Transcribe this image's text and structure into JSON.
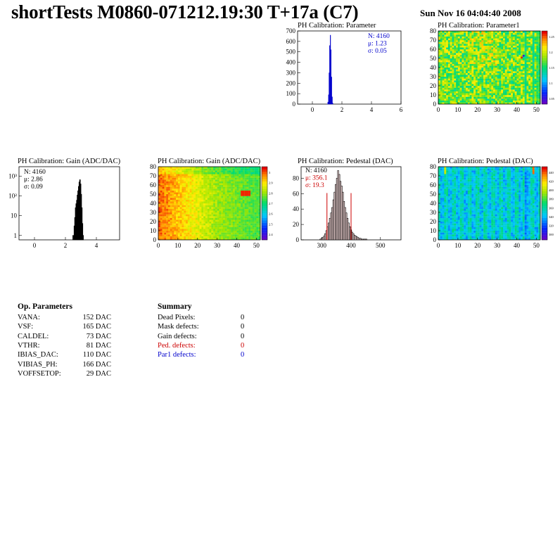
{
  "header": {
    "title": "shortTests M0860-071212.19:30 T+17a (C7)",
    "date": "Sun Nov 16 04:04:40 2008"
  },
  "colors": {
    "blue": "#0000cc",
    "red": "#cc0000",
    "black": "#000000"
  },
  "chart_data": [
    {
      "id": "param-hist",
      "type": "bar",
      "title": "PH Calibration: Parameter",
      "xlim": [
        -1,
        6
      ],
      "ylim": [
        0,
        700
      ],
      "xticks": [
        0,
        2,
        4,
        6
      ],
      "yticks": [
        0,
        100,
        200,
        300,
        400,
        500,
        600,
        700
      ],
      "stats": {
        "N": "4160",
        "mean": "1.23",
        "sigma": "0.05"
      },
      "bins": [
        [
          1.02,
          2
        ],
        [
          1.06,
          20
        ],
        [
          1.1,
          90
        ],
        [
          1.14,
          300
        ],
        [
          1.18,
          560
        ],
        [
          1.22,
          660
        ],
        [
          1.26,
          520
        ],
        [
          1.3,
          260
        ],
        [
          1.34,
          70
        ],
        [
          1.38,
          10
        ]
      ]
    },
    {
      "id": "param-map",
      "type": "heatmap",
      "title": "PH Calibration: Parameter1",
      "xlim": [
        0,
        52
      ],
      "ylim": [
        0,
        80
      ],
      "xticks": [
        0,
        10,
        20,
        30,
        40,
        50
      ],
      "yticks": [
        0,
        10,
        20,
        30,
        40,
        50,
        60,
        70,
        80
      ],
      "zticks": [
        "1.05",
        "1.1",
        "1.15",
        "1.2",
        "1.25"
      ]
    },
    {
      "id": "gain-hist",
      "type": "bar",
      "title": "PH Calibration: Gain (ADC/DAC)",
      "xlim": [
        -1,
        5.5
      ],
      "ylim": [
        0.6,
        3000
      ],
      "log_y": true,
      "xticks": [
        0,
        2,
        4
      ],
      "yticks": [
        {
          "v": 1,
          "l": "1"
        },
        {
          "v": 10,
          "l": "10"
        },
        {
          "v": 100,
          "l": "10²"
        },
        {
          "v": 1000,
          "l": "10³"
        }
      ],
      "stats": {
        "N": "4160",
        "mean": "2.86",
        "sigma": "0.09"
      },
      "bins": [
        [
          2.5,
          1
        ],
        [
          2.58,
          3
        ],
        [
          2.62,
          8
        ],
        [
          2.66,
          25
        ],
        [
          2.7,
          40
        ],
        [
          2.74,
          60
        ],
        [
          2.78,
          110
        ],
        [
          2.82,
          180
        ],
        [
          2.86,
          300
        ],
        [
          2.9,
          500
        ],
        [
          2.94,
          650
        ],
        [
          2.98,
          400
        ],
        [
          3.02,
          120
        ],
        [
          3.06,
          25
        ],
        [
          3.1,
          4
        ],
        [
          3.14,
          1
        ]
      ]
    },
    {
      "id": "gain-map",
      "type": "heatmap",
      "title": "PH Calibration: Gain (ADC/DAC)",
      "xlim": [
        0,
        52
      ],
      "ylim": [
        0,
        80
      ],
      "xticks": [
        0,
        10,
        20,
        30,
        40,
        50
      ],
      "yticks": [
        0,
        10,
        20,
        30,
        40,
        50,
        60,
        70,
        80
      ],
      "zticks": [
        "2.4",
        "2.5",
        "2.6",
        "2.7",
        "2.8",
        "2.9",
        "3"
      ]
    },
    {
      "id": "ped-hist",
      "type": "bar",
      "title": "PH Calibration: Pedestal (DAC)",
      "xlim": [
        230,
        570
      ],
      "ylim": [
        0,
        95
      ],
      "xticks": [
        300,
        400,
        500
      ],
      "yticks": [
        0,
        20,
        40,
        60,
        80
      ],
      "stats": {
        "N": "4160",
        "mean": "356.1",
        "sigma": "19.3"
      },
      "cut_lines": [
        318,
        400
      ],
      "bins": [
        [
          296,
          1
        ],
        [
          300,
          2
        ],
        [
          304,
          3
        ],
        [
          308,
          5
        ],
        [
          312,
          8
        ],
        [
          316,
          12
        ],
        [
          320,
          17
        ],
        [
          324,
          22
        ],
        [
          328,
          28
        ],
        [
          332,
          35
        ],
        [
          336,
          42
        ],
        [
          340,
          52
        ],
        [
          344,
          62
        ],
        [
          348,
          72
        ],
        [
          352,
          80
        ],
        [
          356,
          90
        ],
        [
          360,
          85
        ],
        [
          364,
          76
        ],
        [
          368,
          70
        ],
        [
          372,
          62
        ],
        [
          376,
          50
        ],
        [
          380,
          42
        ],
        [
          384,
          35
        ],
        [
          388,
          28
        ],
        [
          392,
          22
        ],
        [
          396,
          17
        ],
        [
          400,
          13
        ],
        [
          404,
          10
        ],
        [
          408,
          8
        ],
        [
          412,
          6
        ],
        [
          416,
          5
        ],
        [
          420,
          4
        ],
        [
          424,
          3
        ],
        [
          428,
          2
        ],
        [
          432,
          2
        ],
        [
          436,
          1
        ],
        [
          440,
          1
        ],
        [
          444,
          1
        ],
        [
          448,
          1
        ],
        [
          452,
          1
        ]
      ]
    },
    {
      "id": "ped-map",
      "type": "heatmap",
      "title": "PH Calibration: Pedestal (DAC)",
      "xlim": [
        0,
        52
      ],
      "ylim": [
        0,
        80
      ],
      "xticks": [
        0,
        10,
        20,
        30,
        40,
        50
      ],
      "yticks": [
        0,
        10,
        20,
        30,
        40,
        50,
        60,
        70,
        80
      ],
      "zticks": [
        "300",
        "320",
        "340",
        "360",
        "380",
        "400",
        "420",
        "440"
      ]
    }
  ],
  "op_params": {
    "heading": "Op. Parameters",
    "rows": [
      {
        "name": "VANA:",
        "value": "152 DAC"
      },
      {
        "name": "VSF:",
        "value": "165 DAC"
      },
      {
        "name": "CALDEL:",
        "value": "73 DAC"
      },
      {
        "name": "VTHR:",
        "value": "81 DAC"
      },
      {
        "name": "IBIAS_DAC:",
        "value": "110 DAC"
      },
      {
        "name": "VIBIAS_PH:",
        "value": "166 DAC"
      },
      {
        "name": "VOFFSETOP:",
        "value": "29 DAC"
      }
    ]
  },
  "summary": {
    "heading": "Summary",
    "rows": [
      {
        "name": "Dead Pixels:",
        "value": "0",
        "color": "#000000"
      },
      {
        "name": "Mask defects:",
        "value": "0",
        "color": "#000000"
      },
      {
        "name": "Gain defects:",
        "value": "0",
        "color": "#000000"
      },
      {
        "name": "Ped. defects:",
        "value": "0",
        "color": "#cc0000"
      },
      {
        "name": "Par1 defects:",
        "value": "0",
        "color": "#0000cc"
      }
    ]
  }
}
